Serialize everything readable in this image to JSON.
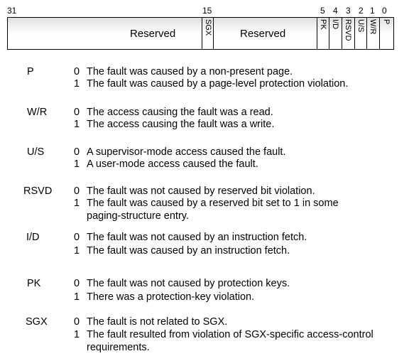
{
  "bit_numbers": {
    "b31": "31",
    "b15": "15",
    "b5": "5",
    "b4": "4",
    "b3": "3",
    "b2": "2",
    "b1": "1",
    "b0": "0"
  },
  "register": {
    "reserved_left": "Reserved",
    "sgx": "SGX",
    "reserved_right": "Reserved",
    "pk": "PK",
    "id": "I/D",
    "rsvd": "RSVD",
    "us": "U/S",
    "wr": "W/R",
    "p": "P"
  },
  "fields": [
    {
      "name": "P",
      "v0": "0",
      "d0": "The fault was caused by a non-present page.",
      "v1": "1",
      "d1": "The fault was caused by a page-level protection violation."
    },
    {
      "name": "W/R",
      "v0": "0",
      "d0": "The access causing the fault was a read.",
      "v1": "1",
      "d1": "The access causing the fault was a write."
    },
    {
      "name": "U/S",
      "v0": "0",
      "d0": "A supervisor-mode access caused the fault.",
      "v1": "1",
      "d1": "A user-mode access caused the fault."
    },
    {
      "name": "RSVD",
      "v0": "0",
      "d0": "The fault was not caused by reserved bit violation.",
      "v1": "1",
      "d1a": "The fault was caused by a reserved bit set to 1 in some",
      "d1b": "paging-structure entry."
    },
    {
      "name": "I/D",
      "v0": "0",
      "d0": "The fault was not caused by an instruction fetch.",
      "v1": "1",
      "d1": "The fault was caused by an instruction fetch."
    },
    {
      "name": "PK",
      "v0": "0",
      "d0": "The fault was not caused by protection keys.",
      "v1": "1",
      "d1": "There was a protection-key violation."
    },
    {
      "name": "SGX",
      "v0": "0",
      "d0": "The fault is not related to SGX.",
      "v1": "1",
      "d1a": "The fault resulted from violation of SGX-specific access-control",
      "d1b": "requirements."
    }
  ]
}
